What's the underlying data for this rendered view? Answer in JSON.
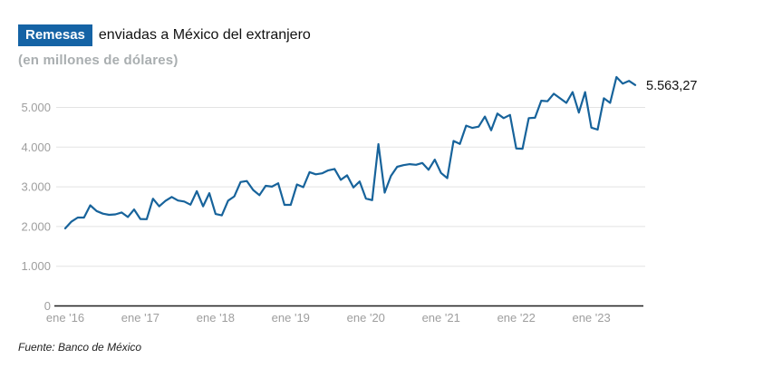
{
  "header": {
    "badge": "Remesas",
    "title": "enviadas a México del extranjero",
    "subtitle": "(en millones de dólares)"
  },
  "footer": {
    "source": "Fuente: Banco de México"
  },
  "chart_data": {
    "type": "line",
    "title": "Remesas enviadas a México del extranjero",
    "subtitle": "(en millones de dólares)",
    "xlabel": "",
    "ylabel": "millones de dólares",
    "grid": "horizontal",
    "legend": "none",
    "ylim": [
      0,
      5900
    ],
    "y_ticks": [
      0,
      1000,
      2000,
      3000,
      4000,
      5000
    ],
    "y_tick_labels": [
      "0",
      "1.000",
      "2.000",
      "3.000",
      "4.000",
      "5.000"
    ],
    "x_tick_labels": [
      "ene '16",
      "ene '17",
      "ene '18",
      "ene '19",
      "ene '20",
      "ene '21",
      "ene '22",
      "ene '23"
    ],
    "last_value_label": "5.563,27",
    "last_value": 5563.27,
    "months": [
      "ene 2016",
      "feb 2016",
      "mar 2016",
      "abr 2016",
      "may 2016",
      "jun 2016",
      "jul 2016",
      "ago 2016",
      "sep 2016",
      "oct 2016",
      "nov 2016",
      "dic 2016",
      "ene 2017",
      "feb 2017",
      "mar 2017",
      "abr 2017",
      "may 2017",
      "jun 2017",
      "jul 2017",
      "ago 2017",
      "sep 2017",
      "oct 2017",
      "nov 2017",
      "dic 2017",
      "ene 2018",
      "feb 2018",
      "mar 2018",
      "abr 2018",
      "may 2018",
      "jun 2018",
      "jul 2018",
      "ago 2018",
      "sep 2018",
      "oct 2018",
      "nov 2018",
      "dic 2018",
      "ene 2019",
      "feb 2019",
      "mar 2019",
      "abr 2019",
      "may 2019",
      "jun 2019",
      "jul 2019",
      "ago 2019",
      "sep 2019",
      "oct 2019",
      "nov 2019",
      "dic 2019",
      "ene 2020",
      "feb 2020",
      "mar 2020",
      "abr 2020",
      "may 2020",
      "jun 2020",
      "jul 2020",
      "ago 2020",
      "sep 2020",
      "oct 2020",
      "nov 2020",
      "dic 2020",
      "ene 2021",
      "feb 2021",
      "mar 2021",
      "abr 2021",
      "may 2021",
      "jun 2021",
      "jul 2021",
      "ago 2021",
      "sep 2021",
      "oct 2021",
      "nov 2021",
      "dic 2021",
      "ene 2022",
      "feb 2022",
      "mar 2022",
      "abr 2022",
      "may 2022",
      "jun 2022",
      "jul 2022",
      "ago 2022",
      "sep 2022",
      "oct 2022",
      "nov 2022",
      "dic 2022",
      "ene 2023",
      "feb 2023",
      "mar 2023",
      "abr 2023",
      "may 2023",
      "jun 2023",
      "jul 2023",
      "ago 2023"
    ],
    "values": [
      1955,
      2125,
      2225,
      2225,
      2535,
      2390,
      2325,
      2295,
      2305,
      2355,
      2240,
      2430,
      2190,
      2185,
      2700,
      2510,
      2645,
      2745,
      2655,
      2630,
      2550,
      2890,
      2510,
      2840,
      2315,
      2280,
      2650,
      2760,
      3120,
      3145,
      2920,
      2790,
      3025,
      3005,
      3090,
      2545,
      2545,
      3060,
      2990,
      3370,
      3315,
      3340,
      3415,
      3450,
      3175,
      3290,
      2985,
      3135,
      2705,
      2665,
      4075,
      2855,
      3275,
      3505,
      3545,
      3570,
      3555,
      3600,
      3430,
      3685,
      3350,
      3220,
      4155,
      4080,
      4540,
      4485,
      4515,
      4770,
      4425,
      4845,
      4730,
      4810,
      3965,
      3960,
      4730,
      4740,
      5170,
      5155,
      5345,
      5230,
      5115,
      5385,
      4870,
      5385,
      4490,
      4440,
      5230,
      5115,
      5765,
      5600,
      5670,
      5563.27
    ],
    "colors": {
      "line": "#17639b",
      "grid": "#e3e3e3",
      "axis": "#1f1f1f",
      "tick_text": "#9e9e9e",
      "annotation": "#111111",
      "badge_bg": "#1563a5",
      "subtitle_text": "#a9aeb0"
    }
  }
}
